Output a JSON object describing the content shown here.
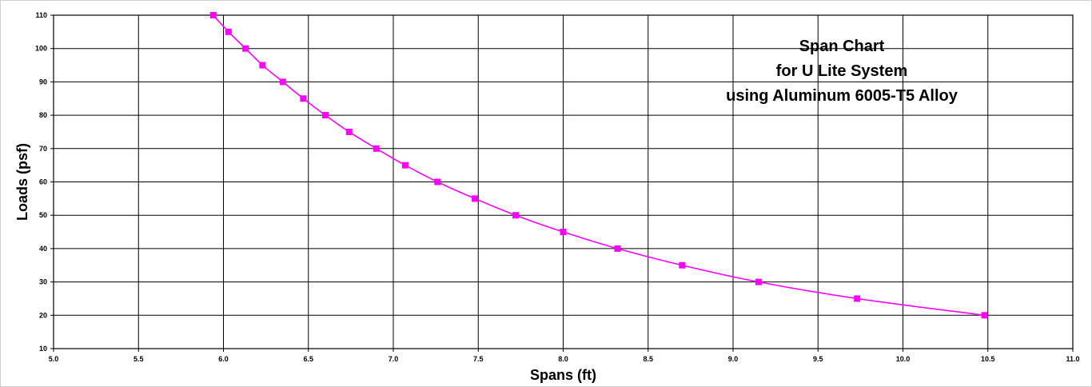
{
  "chart_data": {
    "type": "line",
    "title_lines": [
      "Span Chart",
      "for U Lite System",
      "using Aluminum 6005-T5 Alloy"
    ],
    "xlabel": "Spans (ft)",
    "ylabel": "Loads (psf)",
    "xlim": [
      5.0,
      11.0
    ],
    "ylim": [
      10,
      110
    ],
    "x_ticks": [
      5.0,
      5.5,
      6.0,
      6.5,
      7.0,
      7.5,
      8.0,
      8.5,
      9.0,
      9.5,
      10.0,
      10.5,
      11.0
    ],
    "x_tick_labels": [
      "5.0",
      "5.5",
      "6.0",
      "6.5",
      "7.0",
      "7.5",
      "8.0",
      "8.5",
      "9.0",
      "9.5",
      "10.0",
      "10.5",
      "11.0"
    ],
    "y_ticks": [
      10,
      20,
      30,
      40,
      50,
      60,
      70,
      80,
      90,
      100,
      110
    ],
    "y_tick_labels": [
      "10",
      "20",
      "30",
      "40",
      "50",
      "60",
      "70",
      "80",
      "90",
      "100",
      "110"
    ],
    "grid": true,
    "legend": "none",
    "series": [
      {
        "color": "#ff00ff",
        "marker": "square",
        "x": [
          5.94,
          6.03,
          6.13,
          6.23,
          6.35,
          6.47,
          6.6,
          6.74,
          6.9,
          7.07,
          7.26,
          7.48,
          7.72,
          8.0,
          8.32,
          8.7,
          9.15,
          9.73,
          10.48
        ],
        "y": [
          110,
          105,
          100,
          95,
          90,
          85,
          80,
          75,
          70,
          65,
          60,
          55,
          50,
          45,
          40,
          35,
          30,
          25,
          20
        ]
      }
    ]
  }
}
